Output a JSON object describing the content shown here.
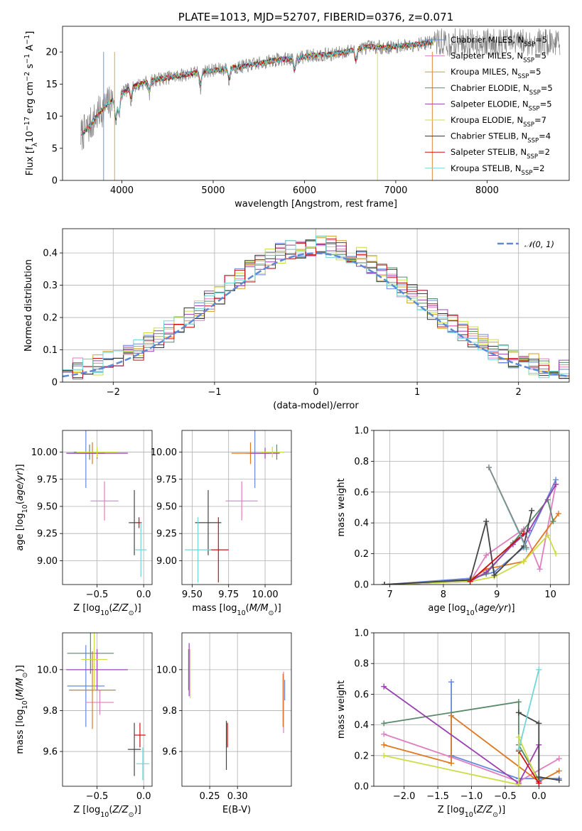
{
  "chart_data": [
    {
      "type": "line",
      "id": "spectrum",
      "title": "PLATE=1013, MJD=52707, FIBERID=0376, z=0.071",
      "xlabel": "wavelength [Angstrom, rest frame]",
      "ylabel": "Flux [f_λ 10^-17 erg cm^-2 s^-1 A^-1]",
      "xlim": [
        3350,
        8900
      ],
      "ylim": [
        0,
        24
      ],
      "xticks": [
        4000,
        5000,
        6000,
        7000,
        8000
      ],
      "yticks": [
        0,
        5,
        10,
        15,
        20
      ],
      "grid": false,
      "legend_position": "right",
      "data_color": "#808080",
      "continuum": {
        "x": [
          3550,
          3650,
          3750,
          3850,
          3950,
          4100,
          4300,
          4500,
          4700,
          4900,
          5100,
          5300,
          5500,
          5700,
          5900,
          6100,
          6300,
          6500,
          6700,
          6900,
          7100,
          7300,
          7400
        ],
        "y": [
          7.0,
          8.5,
          10.5,
          12.0,
          13.0,
          14.5,
          15.5,
          16.0,
          16.5,
          17.0,
          17.3,
          17.7,
          18.2,
          18.8,
          19.0,
          19.5,
          19.6,
          20.2,
          20.8,
          20.7,
          21.0,
          21.3,
          21.5
        ]
      },
      "series": [
        {
          "name": "Chabrier MILES, N_SSP=5",
          "color": "#6688dd"
        },
        {
          "name": "Salpeter MILES, N_SSP=5",
          "color": "#e07fbf"
        },
        {
          "name": "Kroupa MILES, N_SSP=5",
          "color": "#d4a020"
        },
        {
          "name": "Chabrier ELODIE, N_SSP=5",
          "color": "#5a8a6a"
        },
        {
          "name": "Salpeter ELODIE, N_SSP=5",
          "color": "#9a40b0"
        },
        {
          "name": "Kroupa ELODIE, N_SSP=7",
          "color": "#ccdd44"
        },
        {
          "name": "Chabrier STELIB, N_SSP=4",
          "color": "#333333"
        },
        {
          "name": "Salpeter STELIB, N_SSP=2",
          "color": "#cc1111"
        },
        {
          "name": "Kroupa STELIB, N_SSP=2",
          "color": "#70d6d6"
        }
      ],
      "legend_entries": [
        {
          "pre": "Chabrier MILES, N",
          "sub": "SSP",
          "post": "=5"
        },
        {
          "pre": "Salpeter MILES, N",
          "sub": "SSP",
          "post": "=5"
        },
        {
          "pre": "Kroupa MILES, N",
          "sub": "SSP",
          "post": "=5"
        },
        {
          "pre": "Chabrier ELODIE, N",
          "sub": "SSP",
          "post": "=5"
        },
        {
          "pre": "Salpeter ELODIE, N",
          "sub": "SSP",
          "post": "=5"
        },
        {
          "pre": "Kroupa ELODIE, N",
          "sub": "SSP",
          "post": "=7"
        },
        {
          "pre": "Chabrier STELIB, N",
          "sub": "SSP",
          "post": "=4"
        },
        {
          "pre": "Salpeter STELIB, N",
          "sub": "SSP",
          "post": "=2"
        },
        {
          "pre": "Kroupa STELIB, N",
          "sub": "SSP",
          "post": "=2"
        }
      ]
    },
    {
      "type": "histogram",
      "id": "residuals",
      "xlabel": "(data-model)/error",
      "ylabel": "Normed distribution",
      "xlim": [
        -2.5,
        2.5
      ],
      "ylim": [
        0,
        0.475
      ],
      "xticks": [
        -2,
        -1,
        0,
        1,
        2
      ],
      "yticks": [
        0.0,
        0.1,
        0.2,
        0.3,
        0.4
      ],
      "grid": true,
      "legend_position": "top-right",
      "legend": "𝒩(0, 1)",
      "gaussian": {
        "mu": 0,
        "sigma": 1,
        "color": "#5b8bd6"
      },
      "bin_width": 0.1,
      "x_start": -2.5
    },
    {
      "type": "errorbar",
      "id": "age-vs-Z",
      "xlabel": "Z [log10(Z/Z⊙)]",
      "ylabel": "age [log10(age/yr)]",
      "xlim": [
        -0.87,
        0.09
      ],
      "ylim": [
        8.78,
        10.2
      ],
      "xticks": [
        -0.5,
        0.0
      ],
      "xticklabels": [
        "−0.5",
        "0.0"
      ],
      "yticks": [
        9.0,
        9.25,
        9.5,
        9.75,
        10.0
      ],
      "yticklabels": [
        "9.00",
        "9.25",
        "9.50",
        "9.75",
        "10.00"
      ],
      "grid": true,
      "points": [
        {
          "x": -0.62,
          "y": 9.99,
          "xerr": 0.2,
          "yerr": 0.32,
          "color": "#6688dd"
        },
        {
          "x": -0.42,
          "y": 9.55,
          "xerr": 0.15,
          "yerr": 0.18,
          "color": "#e07fbf"
        },
        {
          "x": -0.55,
          "y": 9.99,
          "xerr": 0.13,
          "yerr": 0.1,
          "color": "#e07820"
        },
        {
          "x": -0.58,
          "y": 10.0,
          "xerr": 0.17,
          "yerr": 0.07,
          "color": "#5a8a6a"
        },
        {
          "x": -0.5,
          "y": 9.99,
          "xerr": 0.33,
          "yerr": 0.05,
          "color": "#9a40b0"
        },
        {
          "x": -0.5,
          "y": 10.0,
          "xerr": 0.22,
          "yerr": 0.05,
          "color": "#ccdd44"
        },
        {
          "x": -0.1,
          "y": 9.35,
          "xerr": 0.06,
          "yerr": 0.3,
          "color": "#444444"
        },
        {
          "x": -0.05,
          "y": 9.35,
          "xerr": 0.03,
          "yerr": 0.05,
          "color": "#cc1111"
        },
        {
          "x": -0.03,
          "y": 9.1,
          "xerr": 0.06,
          "yerr": 0.25,
          "color": "#70d6d6"
        }
      ]
    },
    {
      "type": "errorbar",
      "id": "age-vs-mass",
      "xlabel": "mass [log10(M/M⊙)]",
      "ylabel": "",
      "xlim": [
        9.43,
        10.18
      ],
      "ylim": [
        8.78,
        10.2
      ],
      "xticks": [
        9.5,
        9.75,
        10.0
      ],
      "xticklabels": [
        "9.50",
        "9.75",
        "10.00"
      ],
      "yticks": [
        9.0,
        9.25,
        9.5,
        9.75,
        10.0
      ],
      "yticklabels": [
        "9.00",
        "9.25",
        "9.50",
        "9.75",
        "10.00"
      ],
      "grid": true,
      "points": [
        {
          "x": 9.93,
          "y": 9.99,
          "xerr": 0.06,
          "yerr": 0.32,
          "color": "#6688dd"
        },
        {
          "x": 9.84,
          "y": 9.55,
          "xerr": 0.11,
          "yerr": 0.18,
          "color": "#e07fbf"
        },
        {
          "x": 9.9,
          "y": 9.99,
          "xerr": 0.13,
          "yerr": 0.1,
          "color": "#e07820"
        },
        {
          "x": 10.08,
          "y": 10.0,
          "xerr": 0.05,
          "yerr": 0.07,
          "color": "#5a8a6a"
        },
        {
          "x": 10.0,
          "y": 9.99,
          "xerr": 0.1,
          "yerr": 0.05,
          "color": "#9a40b0"
        },
        {
          "x": 10.05,
          "y": 10.0,
          "xerr": 0.08,
          "yerr": 0.05,
          "color": "#ccdd44"
        },
        {
          "x": 9.61,
          "y": 9.35,
          "xerr": 0.09,
          "yerr": 0.3,
          "color": "#444444"
        },
        {
          "x": 9.68,
          "y": 9.1,
          "xerr": 0.07,
          "yerr": 0.3,
          "color": "#cc1111"
        },
        {
          "x": 9.54,
          "y": 9.1,
          "xerr": 0.09,
          "yerr": 0.3,
          "color": "#70d6d6"
        }
      ]
    },
    {
      "type": "line",
      "id": "massweight-vs-age",
      "xlabel": "age [log10(age/yr)]",
      "ylabel": "mass weight",
      "xlim": [
        6.7,
        10.35
      ],
      "ylim": [
        0,
        1.0
      ],
      "xticks": [
        7,
        8,
        9,
        10
      ],
      "yticks": [
        0.0,
        0.2,
        0.4,
        0.6,
        0.8,
        1.0
      ],
      "yticklabels": [
        "0.0",
        "0.2",
        "0.4",
        "0.6",
        "0.8",
        "1.0"
      ],
      "grid": true,
      "series": [
        {
          "name": "Chabrier MILES",
          "color": "#6688dd",
          "x": [
            6.9,
            8.5,
            8.95,
            9.5,
            10.1
          ],
          "y": [
            0.0,
            0.04,
            0.08,
            0.24,
            0.68
          ]
        },
        {
          "name": "Salpeter MILES",
          "color": "#e07fbf",
          "x": [
            6.9,
            8.5,
            8.8,
            9.5,
            9.8,
            10.1
          ],
          "y": [
            0.0,
            0.02,
            0.19,
            0.36,
            0.1,
            0.65
          ]
        },
        {
          "name": "Kroupa MILES",
          "color": "#e07820",
          "x": [
            6.9,
            8.5,
            8.8,
            9.5,
            10.15
          ],
          "y": [
            0.0,
            0.03,
            0.1,
            0.15,
            0.46
          ]
        },
        {
          "name": "Chabrier ELODIE",
          "color": "#5a8a6a",
          "x": [
            6.9,
            8.5,
            8.8,
            9.3,
            9.95,
            10.05
          ],
          "y": [
            0.0,
            0.03,
            0.07,
            0.27,
            0.55,
            0.41
          ]
        },
        {
          "name": "Salpeter ELODIE",
          "color": "#9a40b0",
          "x": [
            6.9,
            8.5,
            8.8,
            9.3,
            9.6,
            10.1
          ],
          "y": [
            0.0,
            0.02,
            0.08,
            0.26,
            0.35,
            0.65
          ]
        },
        {
          "name": "Kroupa ELODIE",
          "color": "#ccdd44",
          "x": [
            6.9,
            8.5,
            8.95,
            9.5,
            9.95,
            10.1
          ],
          "y": [
            0.0,
            0.02,
            0.05,
            0.15,
            0.32,
            0.2
          ]
        },
        {
          "name": "Chabrier STELIB",
          "color": "#444444",
          "x": [
            6.9,
            8.5,
            8.8,
            8.95,
            9.5,
            9.65
          ],
          "y": [
            0.0,
            0.03,
            0.41,
            0.06,
            0.25,
            0.48
          ]
        },
        {
          "name": "Salpeter STELIB",
          "color": "#cc1111",
          "x": [
            8.5,
            9.5
          ],
          "y": [
            0.02,
            0.33
          ]
        },
        {
          "name": "Kroupa STELIB",
          "color": "#70d6d6",
          "x": [
            8.85,
            9.55
          ],
          "y": [
            0.76,
            0.23
          ]
        },
        {
          "name": "Chabrier STELIB upper",
          "color": "#888888",
          "x": [
            8.85,
            9.55
          ],
          "y": [
            0.76,
            0.24
          ]
        }
      ]
    },
    {
      "type": "errorbar",
      "id": "mass-vs-Z",
      "xlabel": "Z [log10(Z/Z⊙)]",
      "ylabel": "mass [log10(M/M⊙)]",
      "xlim": [
        -0.87,
        0.09
      ],
      "ylim": [
        9.43,
        10.18
      ],
      "xticks": [
        -0.5,
        0.0
      ],
      "xticklabels": [
        "−0.5",
        "0.0"
      ],
      "yticks": [
        9.6,
        9.8,
        10.0
      ],
      "yticklabels": [
        "9.6",
        "9.8",
        "10.0"
      ],
      "grid": true,
      "points": [
        {
          "x": -0.62,
          "y": 9.92,
          "xerr": 0.2,
          "yerr": 0.2,
          "color": "#6688dd"
        },
        {
          "x": -0.47,
          "y": 9.84,
          "xerr": 0.15,
          "yerr": 0.06,
          "color": "#e07fbf"
        },
        {
          "x": -0.55,
          "y": 9.9,
          "xerr": 0.25,
          "yerr": 0.19,
          "color": "#e07820"
        },
        {
          "x": -0.57,
          "y": 10.08,
          "xerr": 0.25,
          "yerr": 0.1,
          "color": "#5a8a6a"
        },
        {
          "x": -0.5,
          "y": 10.0,
          "xerr": 0.33,
          "yerr": 0.1,
          "color": "#9a40b0"
        },
        {
          "x": -0.53,
          "y": 10.05,
          "xerr": 0.14,
          "yerr": 0.15,
          "color": "#ccdd44"
        },
        {
          "x": -0.1,
          "y": 9.61,
          "xerr": 0.07,
          "yerr": 0.13,
          "color": "#444444"
        },
        {
          "x": -0.04,
          "y": 9.68,
          "xerr": 0.06,
          "yerr": 0.06,
          "color": "#cc1111"
        },
        {
          "x": -0.01,
          "y": 9.54,
          "xerr": 0.07,
          "yerr": 0.08,
          "color": "#70d6d6"
        }
      ]
    },
    {
      "type": "errorbar",
      "id": "mass-vs-EBV",
      "xlabel": "E(B-V)",
      "ylabel": "",
      "xlim": [
        0.2,
        0.397
      ],
      "ylim": [
        9.43,
        10.18
      ],
      "xticks": [
        0.25,
        0.3
      ],
      "xticklabels": [
        "0.25",
        "0.30"
      ],
      "yticks": [
        9.6,
        9.8,
        10.0
      ],
      "yticklabels": [
        "9.6",
        "9.8",
        "10.0"
      ],
      "grid": true,
      "points": [
        {
          "x": 0.383,
          "y": 9.84,
          "xerr": 0,
          "yerr": 0.15,
          "color": "#e07fbf"
        },
        {
          "x": 0.382,
          "y": 9.85,
          "xerr": 0,
          "yerr": 0.13,
          "color": "#e07820"
        },
        {
          "x": 0.385,
          "y": 9.9,
          "xerr": 0,
          "yerr": 0.05,
          "color": "#6688dd"
        },
        {
          "x": 0.213,
          "y": 10.0,
          "xerr": 0,
          "yerr": 0.13,
          "color": "#9a40b0"
        },
        {
          "x": 0.215,
          "y": 9.98,
          "xerr": 0,
          "yerr": 0.12,
          "color": "#ccdd44"
        },
        {
          "x": 0.212,
          "y": 10.0,
          "xerr": 0,
          "yerr": 0.1,
          "color": "#5a8a6a"
        },
        {
          "x": 0.28,
          "y": 9.63,
          "xerr": 0,
          "yerr": 0.12,
          "color": "#444444"
        },
        {
          "x": 0.282,
          "y": 9.68,
          "xerr": 0,
          "yerr": 0.06,
          "color": "#cc1111"
        }
      ]
    },
    {
      "type": "line",
      "id": "massweight-vs-Z",
      "xlabel": "Z [log10(Z/Z⊙)]",
      "ylabel": "mass weight",
      "xlim": [
        -2.45,
        0.45
      ],
      "ylim": [
        0,
        1.0
      ],
      "xticks": [
        -2.0,
        -1.5,
        -1.0,
        -0.5,
        0.0
      ],
      "xticklabels": [
        "−2.0",
        "−1.5",
        "−1.0",
        "−0.5",
        "0.0"
      ],
      "yticks": [
        0.0,
        0.2,
        0.4,
        0.6,
        0.8,
        1.0
      ],
      "yticklabels": [
        "0.0",
        "0.2",
        "0.4",
        "0.6",
        "0.8",
        "1.0"
      ],
      "grid": true,
      "series": [
        {
          "name": "Chabrier MILES",
          "color": "#6688dd",
          "x": [
            -1.3,
            -1.3,
            -0.3,
            0.3
          ],
          "y": [
            0.68,
            0.2,
            0.05,
            0.05
          ]
        },
        {
          "name": "Salpeter MILES",
          "color": "#e07fbf",
          "x": [
            -2.3,
            -1.3,
            -0.3,
            0.3
          ],
          "y": [
            0.34,
            0.19,
            0.03,
            0.18
          ]
        },
        {
          "name": "Kroupa MILES",
          "color": "#e07820",
          "x": [
            -2.3,
            -1.3,
            -1.3,
            0.0,
            0.3
          ],
          "y": [
            0.27,
            0.15,
            0.46,
            0.03,
            0.1
          ]
        },
        {
          "name": "Chabrier ELODIE",
          "color": "#5a8a6a",
          "x": [
            -2.3,
            -0.3,
            -0.3,
            0.0
          ],
          "y": [
            0.41,
            0.55,
            0.27,
            0.04
          ]
        },
        {
          "name": "Salpeter ELODIE",
          "color": "#9a40b0",
          "x": [
            -2.3,
            -0.3,
            0.0,
            0.0
          ],
          "y": [
            0.65,
            0.02,
            0.27,
            0.03
          ]
        },
        {
          "name": "Kroupa ELODIE",
          "color": "#ccdd44",
          "x": [
            -2.3,
            -0.3,
            -0.3,
            0.0
          ],
          "y": [
            0.2,
            0.01,
            0.32,
            0.02
          ]
        },
        {
          "name": "Chabrier STELIB",
          "color": "#444444",
          "x": [
            -0.3,
            0.0,
            0.0,
            0.3
          ],
          "y": [
            0.48,
            0.41,
            0.06,
            0.04
          ]
        },
        {
          "name": "Salpeter STELIB",
          "color": "#cc1111",
          "x": [
            -0.3,
            0.0
          ],
          "y": [
            0.23,
            0.02
          ]
        },
        {
          "name": "Kroupa STELIB",
          "color": "#70d6d6",
          "x": [
            -0.3,
            0.0
          ],
          "y": [
            0.24,
            0.76
          ]
        }
      ]
    }
  ]
}
